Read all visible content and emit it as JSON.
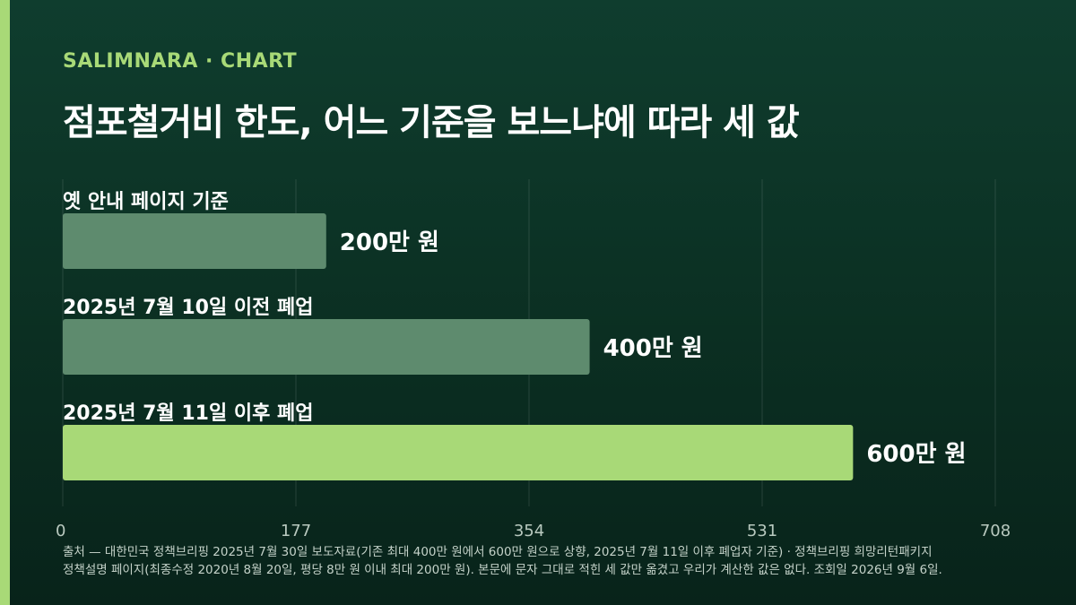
{
  "header": {
    "brand": "SALIMNARA · CHART",
    "title": "점포철거비 한도, 어느 기준을 보느냐에 따라 세 값"
  },
  "chart_data": {
    "type": "bar",
    "orientation": "horizontal",
    "categories": [
      "옛 안내 페이지 기준",
      "2025년 7월 10일 이전 폐업",
      "2025년 7월 11일 이후 폐업"
    ],
    "values": [
      200,
      400,
      600
    ],
    "value_labels": [
      "200만 원",
      "400만 원",
      "600만 원"
    ],
    "xlim": [
      0,
      708
    ],
    "x_ticks": [
      0,
      177,
      354,
      531,
      708
    ],
    "grid": true,
    "colors": [
      "#5e8b6e",
      "#5e8b6e",
      "#a8d977"
    ]
  },
  "footer": {
    "source_line1": "출처 — 대한민국 정책브리핑 2025년 7월 30일 보도자료(기존 최대 400만 원에서 600만 원으로 상향, 2025년 7월 11일 이후 폐업자 기준) · 정책브리핑 희망리턴패키지",
    "source_line2": "정책설명 페이지(최종수정 2020년 8월 20일, 평당 8만 원 이내 최대 200만 원). 본문에 문자 그대로 적힌 세 값만 옮겼고 우리가 계산한 값은 없다. 조회일 2026년 9월 6일."
  }
}
